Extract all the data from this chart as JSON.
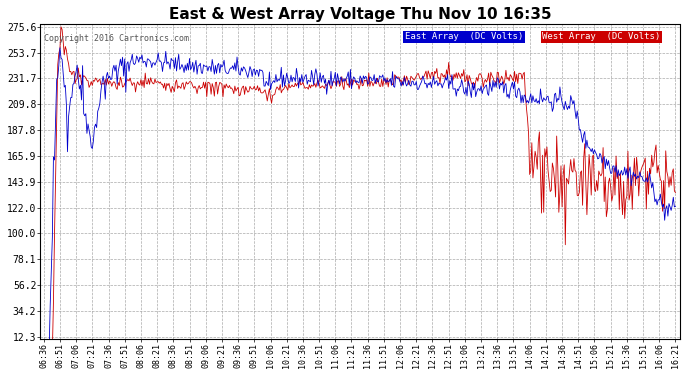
{
  "title": "East & West Array Voltage Thu Nov 10 16:35",
  "copyright": "Copyright 2016 Cartronics.com",
  "legend_east": "East Array  (DC Volts)",
  "legend_west": "West Array  (DC Volts)",
  "east_color": "#0000cc",
  "west_color": "#cc0000",
  "bg_color": "#ffffff",
  "plot_bg_color": "#ffffff",
  "grid_color": "#aaaaaa",
  "text_color": "#000000",
  "title_color": "#000000",
  "copyright_color": "#555555",
  "yticks": [
    12.3,
    34.2,
    56.2,
    78.1,
    100.0,
    122.0,
    143.9,
    165.9,
    187.8,
    209.8,
    231.7,
    253.7,
    275.6
  ],
  "ymin": 12.3,
  "ymax": 275.6,
  "xtick_labels": [
    "06:36",
    "06:51",
    "07:06",
    "07:21",
    "07:36",
    "07:51",
    "08:06",
    "08:21",
    "08:36",
    "08:51",
    "09:06",
    "09:21",
    "09:36",
    "09:51",
    "10:06",
    "10:21",
    "10:36",
    "10:51",
    "11:06",
    "11:21",
    "11:36",
    "11:51",
    "12:06",
    "12:21",
    "12:36",
    "12:51",
    "13:06",
    "13:21",
    "13:36",
    "13:51",
    "14:06",
    "14:21",
    "14:36",
    "14:51",
    "15:06",
    "15:21",
    "15:36",
    "15:51",
    "16:06",
    "16:21"
  ],
  "legend_east_bg": "#0000cc",
  "legend_west_bg": "#cc0000",
  "outer_border_color": "#000000"
}
